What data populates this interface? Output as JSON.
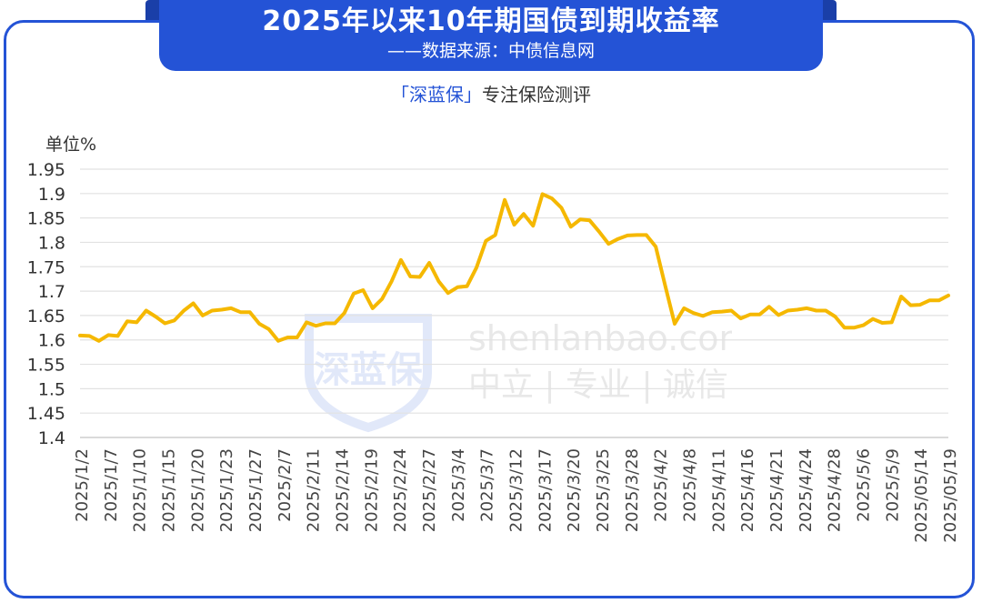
{
  "header": {
    "title": "2025年以来10年期国债到期收益率",
    "subtitle": "——数据来源：中债信息网"
  },
  "brand": {
    "open": "「",
    "name": "深蓝保",
    "close": "」",
    "tagline": "专注保险测评"
  },
  "watermark": {
    "logo_text": "深蓝保",
    "site": "shenlanbao.com",
    "slogan": "中立 | 专业 | 诚信"
  },
  "colors": {
    "line": "#f5b800",
    "accent": "#2453d6",
    "grid": "#e2e2e2"
  },
  "chart_data": {
    "type": "line",
    "ylabel": "单位%",
    "ylim": [
      1.4,
      1.95
    ],
    "yticks": [
      1.95,
      1.9,
      1.85,
      1.8,
      1.75,
      1.7,
      1.65,
      1.6,
      1.55,
      1.5,
      1.45,
      1.4
    ],
    "xtick_labels": [
      "2025/1/2",
      "2025/1/7",
      "2025/1/10",
      "2025/1/15",
      "2025/1/20",
      "2025/1/23",
      "2025/1/27",
      "2025/2/7",
      "2025/2/11",
      "2025/2/14",
      "2025/2/19",
      "2025/2/24",
      "2025/2/27",
      "2025/3/4",
      "2025/3/7",
      "2025/3/12",
      "2025/3/17",
      "2025/3/20",
      "2025/3/25",
      "2025/3/28",
      "2025/4/2",
      "2025/4/8",
      "2025/4/11",
      "2025/4/16",
      "2025/4/21",
      "2025/4/24",
      "2025/4/28",
      "2025/5/6",
      "2025/5/9",
      "2025/05/14",
      "2025/05/19"
    ],
    "grid": true,
    "legend": "none",
    "series": [
      {
        "values": [
          1.609,
          1.608,
          1.598,
          1.61,
          1.608,
          1.638,
          1.636,
          1.66,
          1.648,
          1.634,
          1.64,
          1.66,
          1.675,
          1.65,
          1.66,
          1.662,
          1.665,
          1.657,
          1.657,
          1.633,
          1.622,
          1.598,
          1.605,
          1.605,
          1.636,
          1.629,
          1.634,
          1.634,
          1.655,
          1.695,
          1.702,
          1.665,
          1.684,
          1.72,
          1.764,
          1.73,
          1.729,
          1.758,
          1.72,
          1.696,
          1.708,
          1.71,
          1.748,
          1.803,
          1.815,
          1.887,
          1.836,
          1.858,
          1.834,
          1.899,
          1.89,
          1.871,
          1.832,
          1.847,
          1.845,
          1.822,
          1.797,
          1.807,
          1.814,
          1.815,
          1.815,
          1.791,
          1.711,
          1.633,
          1.665,
          1.655,
          1.649,
          1.657,
          1.658,
          1.66,
          1.644,
          1.652,
          1.652,
          1.668,
          1.651,
          1.66,
          1.662,
          1.665,
          1.66,
          1.66,
          1.648,
          1.625,
          1.625,
          1.63,
          1.643,
          1.635,
          1.636,
          1.689,
          1.671,
          1.672,
          1.681,
          1.681,
          1.691
        ]
      }
    ]
  }
}
